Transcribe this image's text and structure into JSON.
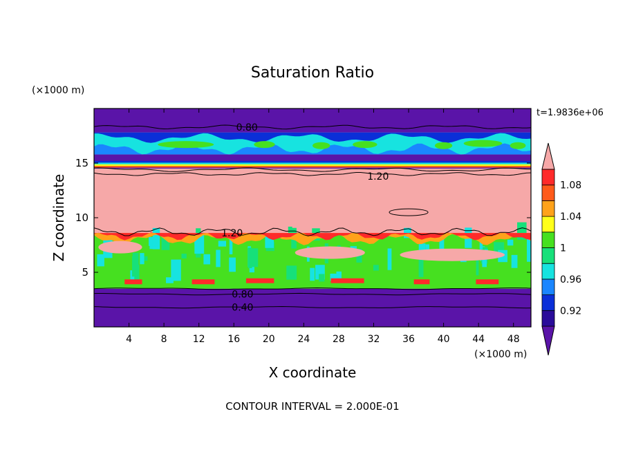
{
  "chart_data": {
    "type": "heatmap",
    "title": "Saturation Ratio",
    "xlabel": "X coordinate",
    "ylabel": "Z coordinate",
    "x_unit": "(×1000 m)",
    "y_unit": "(×1000 m)",
    "xlim": [
      0,
      50
    ],
    "ylim": [
      0,
      20
    ],
    "x_ticks": [
      4,
      8,
      12,
      16,
      20,
      24,
      28,
      32,
      36,
      40,
      44,
      48
    ],
    "y_ticks": [
      5,
      10,
      15
    ],
    "time_label": "t=1.9836e+06",
    "footer": "CONTOUR INTERVAL = 2.000E-01",
    "colorbar": {
      "levels": [
        0.9,
        0.92,
        0.94,
        0.96,
        0.98,
        1.0,
        1.02,
        1.04,
        1.06,
        1.08,
        1.1
      ],
      "labels": [
        "0.92",
        "0.96",
        "1",
        "1.04",
        "1.08"
      ],
      "label_values": [
        0.92,
        0.96,
        1.0,
        1.04,
        1.08
      ],
      "colors": [
        "#5a14a8",
        "#2a0c9a",
        "#0a2fd8",
        "#1a86ff",
        "#17e3e0",
        "#17e07a",
        "#46e020",
        "#ffff1a",
        "#ffa21a",
        "#ff5a1a",
        "#ff2a2a",
        "#f6a8a8"
      ]
    },
    "layers": [
      {
        "z": [
          0,
          3.5
        ],
        "ratio": 0.4,
        "color": "#5a14a8"
      },
      {
        "z": [
          3.5,
          8.5
        ],
        "ratio": 1.0,
        "color": "#46e020"
      },
      {
        "z": [
          8.5,
          14.5
        ],
        "ratio": 1.2,
        "color": "#f6a8a8"
      },
      {
        "z": [
          14.5,
          15.8
        ],
        "ratio": 0.88,
        "color": "#5a14a8"
      },
      {
        "z": [
          15.8,
          17.8
        ],
        "ratio": 0.97,
        "color": "#17e3e0"
      },
      {
        "z": [
          17.8,
          20
        ],
        "ratio": 0.8,
        "color": "#5a14a8"
      }
    ],
    "contour_labels": [
      {
        "text": "0.80",
        "x": 17.5,
        "z": 18.3
      },
      {
        "text": "1.20",
        "x": 32.5,
        "z": 13.8
      },
      {
        "text": "1.20",
        "x": 15.8,
        "z": 8.6
      },
      {
        "text": "0.80",
        "x": 17.0,
        "z": 3.0
      },
      {
        "text": "0.40",
        "x": 17.0,
        "z": 1.8
      }
    ]
  }
}
